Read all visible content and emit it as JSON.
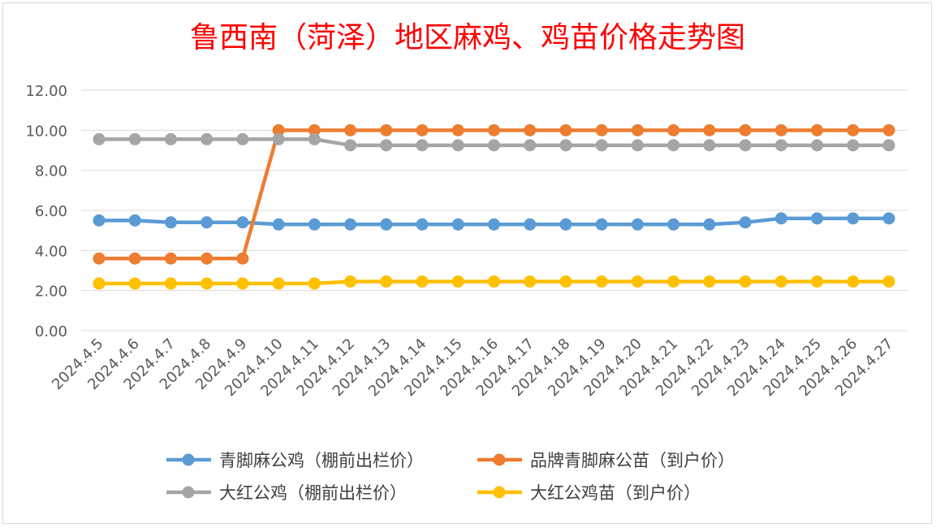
{
  "chart_data": {
    "type": "line",
    "title": "鲁西南（菏泽）地区麻鸡、鸡苗价格走势图",
    "xlabel": "",
    "ylabel": "",
    "ylim": [
      0,
      12
    ],
    "yticks": [
      "0.00",
      "2.00",
      "4.00",
      "6.00",
      "8.00",
      "10.00",
      "12.00"
    ],
    "grid": true,
    "legend_position": "bottom",
    "categories": [
      "2024.4.5",
      "2024.4.6",
      "2024.4.7",
      "2024.4.8",
      "2024.4.9",
      "2024.4.10",
      "2024.4.11",
      "2024.4.12",
      "2024.4.13",
      "2024.4.14",
      "2024.4.15",
      "2024.4.16",
      "2024.4.17",
      "2024.4.18",
      "2024.4.19",
      "2024.4.20",
      "2024.4.21",
      "2024.4.22",
      "2024.4.23",
      "2024.4.24",
      "2024.4.25",
      "2024.4.26",
      "2024.4.27"
    ],
    "series": [
      {
        "name": "青脚麻公鸡（棚前出栏价）",
        "color": "#5b9bd5",
        "values": [
          5.5,
          5.5,
          5.4,
          5.4,
          5.4,
          5.3,
          5.3,
          5.3,
          5.3,
          5.3,
          5.3,
          5.3,
          5.3,
          5.3,
          5.3,
          5.3,
          5.3,
          5.3,
          5.4,
          5.6,
          5.6,
          5.6,
          5.6
        ]
      },
      {
        "name": "品牌青脚麻公苗（到户价）",
        "color": "#ed7d31",
        "values": [
          3.6,
          3.6,
          3.6,
          3.6,
          3.6,
          10,
          10,
          10,
          10,
          10,
          10,
          10,
          10,
          10,
          10,
          10,
          10,
          10,
          10,
          10,
          10,
          10,
          10
        ]
      },
      {
        "name": "大红公鸡（棚前出栏价）",
        "color": "#a5a5a5",
        "values": [
          9.55,
          9.55,
          9.55,
          9.55,
          9.55,
          9.55,
          9.55,
          9.25,
          9.25,
          9.25,
          9.25,
          9.25,
          9.25,
          9.25,
          9.25,
          9.25,
          9.25,
          9.25,
          9.25,
          9.25,
          9.25,
          9.25,
          9.25
        ]
      },
      {
        "name": "大红公鸡苗（到户价）",
        "color": "#ffc000",
        "values": [
          2.35,
          2.35,
          2.35,
          2.35,
          2.35,
          2.35,
          2.35,
          2.45,
          2.45,
          2.45,
          2.45,
          2.45,
          2.45,
          2.45,
          2.45,
          2.45,
          2.45,
          2.45,
          2.45,
          2.45,
          2.45,
          2.45,
          2.45
        ]
      }
    ]
  }
}
